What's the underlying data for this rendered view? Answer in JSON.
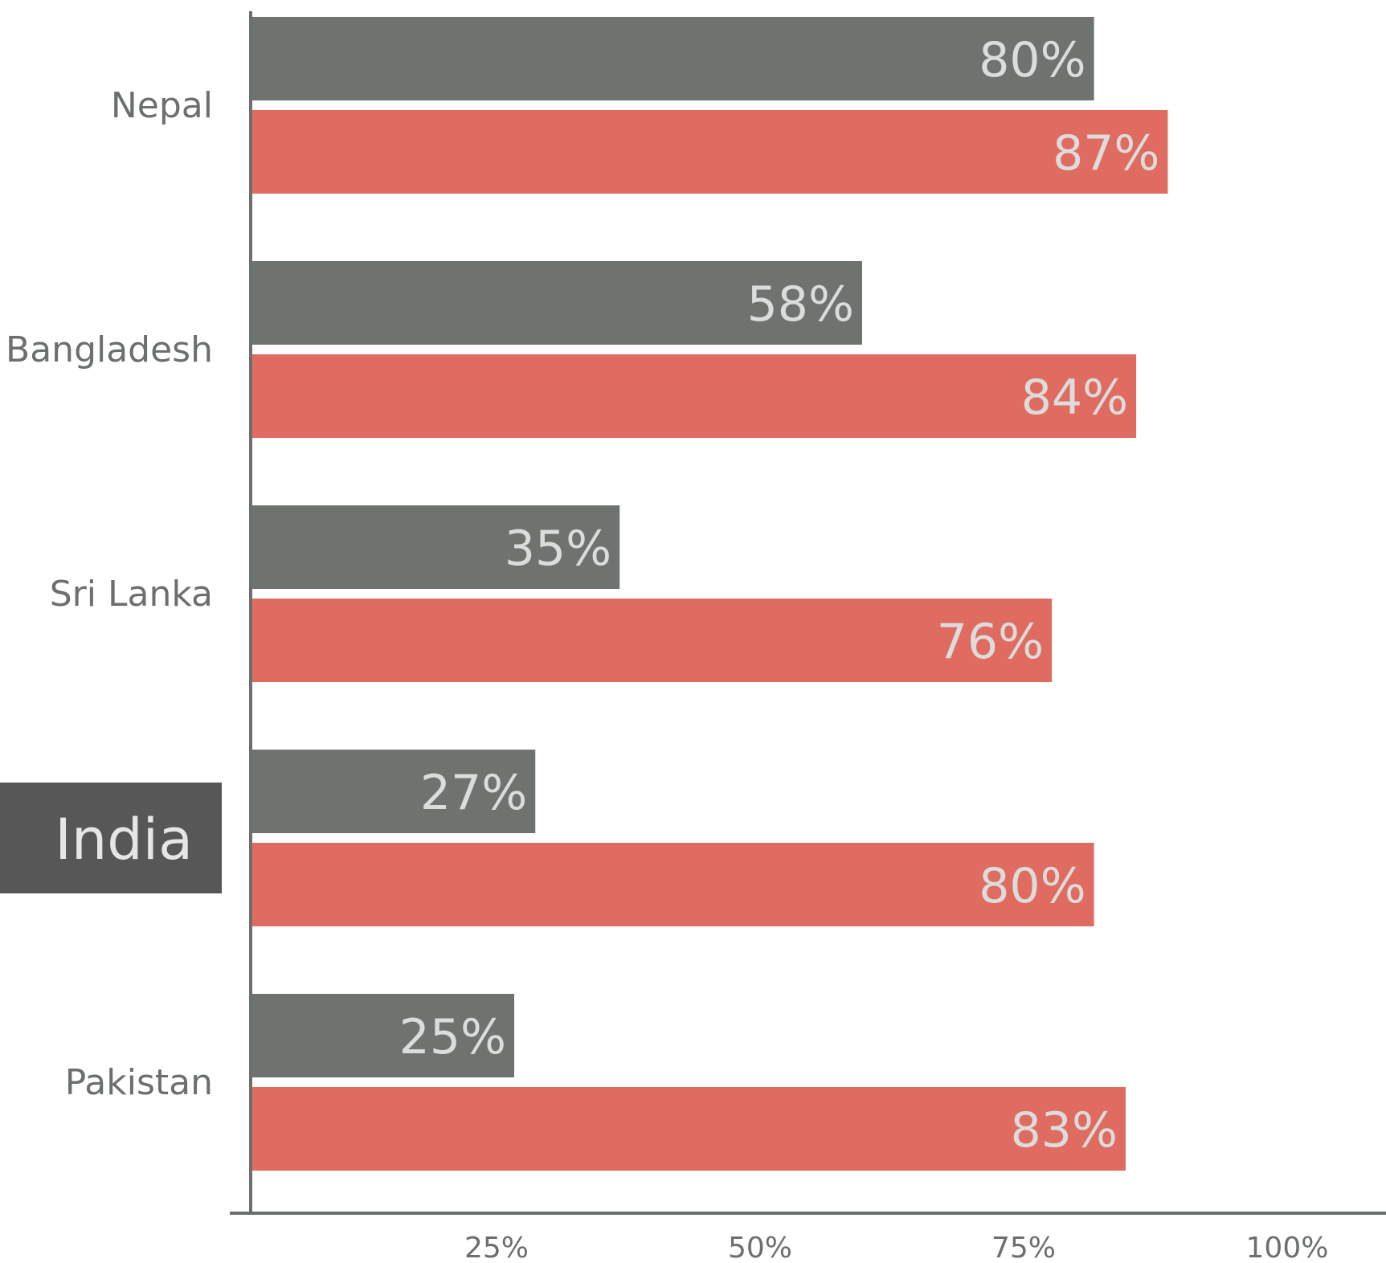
{
  "chart_data": {
    "type": "bar",
    "orientation": "horizontal",
    "categories": [
      "Nepal",
      "Bangladesh",
      "Sri Lanka",
      "India",
      "Pakistan"
    ],
    "highlighted_category": "India",
    "series": [
      {
        "values": [
          80,
          58,
          35,
          27,
          25
        ],
        "color": "#6e7370"
      },
      {
        "values": [
          87,
          84,
          76,
          80,
          83
        ],
        "color": "#e06c61"
      }
    ],
    "data_labels": [
      [
        "80%",
        "58%",
        "35%",
        "27%",
        "25%"
      ],
      [
        "87%",
        "84%",
        "76%",
        "80%",
        "83%"
      ]
    ],
    "x_ticks": [
      25,
      50,
      75,
      100
    ],
    "x_tick_labels": [
      "25%",
      "50%",
      "75%",
      "100%"
    ],
    "xlim": [
      0,
      100
    ],
    "grid": false,
    "legend": "none",
    "axis_color": "#6c706d",
    "highlight_box_color": "#575757"
  }
}
